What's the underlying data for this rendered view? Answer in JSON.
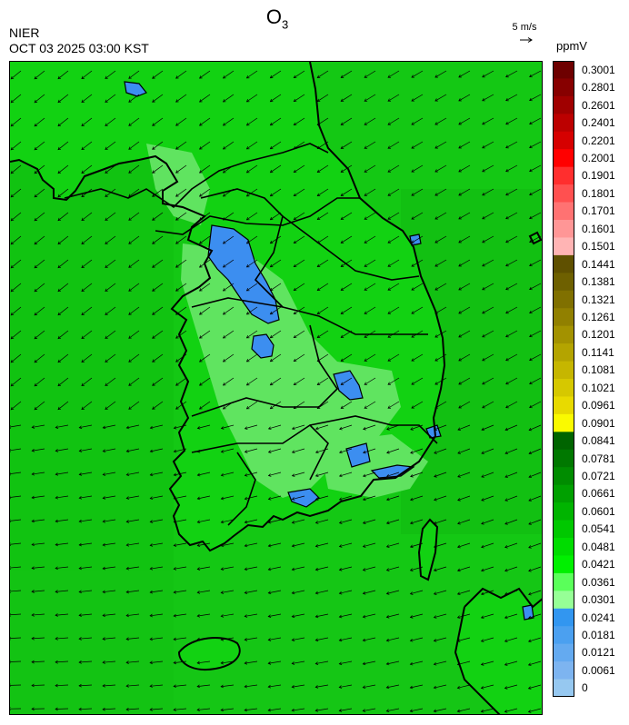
{
  "title_main": "O",
  "title_sub": "3",
  "agency": "NIER",
  "timestamp": "OCT 03 2025 03:00 KST",
  "wind_reference": "5 m/s",
  "unit": "ppmV",
  "legend": [
    {
      "label": "0.3001",
      "color": "#6e0000"
    },
    {
      "label": "0.2801",
      "color": "#870000"
    },
    {
      "label": "0.2601",
      "color": "#a00000"
    },
    {
      "label": "0.2401",
      "color": "#bc0000"
    },
    {
      "label": "0.2201",
      "color": "#d60000"
    },
    {
      "label": "0.2001",
      "color": "#ff0000"
    },
    {
      "label": "0.1901",
      "color": "#ff2e2e"
    },
    {
      "label": "0.1801",
      "color": "#ff5050"
    },
    {
      "label": "0.1701",
      "color": "#ff7272"
    },
    {
      "label": "0.1601",
      "color": "#ff9696"
    },
    {
      "label": "0.1501",
      "color": "#ffb4b4"
    },
    {
      "label": "0.1441",
      "color": "#5f5000"
    },
    {
      "label": "0.1381",
      "color": "#6e6000"
    },
    {
      "label": "0.1321",
      "color": "#807000"
    },
    {
      "label": "0.1261",
      "color": "#918000"
    },
    {
      "label": "0.1201",
      "color": "#a39200"
    },
    {
      "label": "0.1141",
      "color": "#b4a400"
    },
    {
      "label": "0.1081",
      "color": "#c6b600"
    },
    {
      "label": "0.1021",
      "color": "#d6c800"
    },
    {
      "label": "0.0961",
      "color": "#e8da00"
    },
    {
      "label": "0.0901",
      "color": "#fafa00"
    },
    {
      "label": "0.0841",
      "color": "#006400"
    },
    {
      "label": "0.0781",
      "color": "#007800"
    },
    {
      "label": "0.0721",
      "color": "#008c00"
    },
    {
      "label": "0.0661",
      "color": "#00a000"
    },
    {
      "label": "0.0601",
      "color": "#00b400"
    },
    {
      "label": "0.0541",
      "color": "#00c800"
    },
    {
      "label": "0.0481",
      "color": "#00dc00"
    },
    {
      "label": "0.0421",
      "color": "#00f000"
    },
    {
      "label": "0.0361",
      "color": "#5aff5a"
    },
    {
      "label": "0.0301",
      "color": "#96ff96"
    },
    {
      "label": "0.0241",
      "color": "#3296f0"
    },
    {
      "label": "0.0181",
      "color": "#4ba0f0"
    },
    {
      "label": "0.0121",
      "color": "#64aaf0"
    },
    {
      "label": "0.0061",
      "color": "#7db4f0"
    },
    {
      "label": "0",
      "color": "#96c8f0"
    }
  ],
  "colors": {
    "sea": "#14c814",
    "land": "#12d212",
    "high_o3_land": "#6ee86e",
    "low_o3": "#3c8ef0",
    "coast": "#000000",
    "boundary": "#aaaaaa"
  },
  "map": {
    "region": "Korean Peninsula",
    "variable": "O3 surface concentration with wind vectors",
    "wind_pattern": "northwesterly flow over land, curving to northeasterly/easterly over the sea south of the peninsula"
  }
}
